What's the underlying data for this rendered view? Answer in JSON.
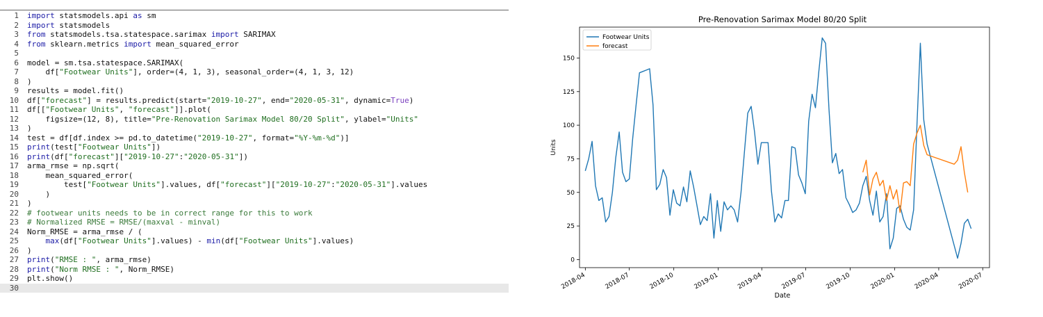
{
  "editor": {
    "current_line": 30,
    "lines": [
      [
        {
          "t": "import",
          "c": "kw"
        },
        {
          "t": " statsmodels.api "
        },
        {
          "t": "as",
          "c": "kw"
        },
        {
          "t": " sm"
        }
      ],
      [
        {
          "t": "import",
          "c": "kw"
        },
        {
          "t": " statsmodels"
        }
      ],
      [
        {
          "t": "from",
          "c": "kw"
        },
        {
          "t": " statsmodels.tsa.statespace.sarimax "
        },
        {
          "t": "import",
          "c": "kw"
        },
        {
          "t": " SARIMAX"
        }
      ],
      [
        {
          "t": "from",
          "c": "kw"
        },
        {
          "t": " sklearn.metrics "
        },
        {
          "t": "import",
          "c": "kw"
        },
        {
          "t": " mean_squared_error"
        }
      ],
      [],
      [
        {
          "t": "model = sm.tsa.statespace.SARIMAX("
        }
      ],
      [
        {
          "t": "    df["
        },
        {
          "t": "\"Footwear Units\"",
          "c": "str"
        },
        {
          "t": "], order=(4, 1, 3), seasonal_order=(4, 1, 3, 12)"
        }
      ],
      [
        {
          "t": ")"
        }
      ],
      [
        {
          "t": "results = model.fit()"
        }
      ],
      [
        {
          "t": "df["
        },
        {
          "t": "\"forecast\"",
          "c": "str"
        },
        {
          "t": "] = results.predict(start="
        },
        {
          "t": "\"2019-10-27\"",
          "c": "str"
        },
        {
          "t": ", end="
        },
        {
          "t": "\"2020-05-31\"",
          "c": "str"
        },
        {
          "t": ", dynamic="
        },
        {
          "t": "True",
          "c": "bool"
        },
        {
          "t": ")"
        }
      ],
      [
        {
          "t": "df[["
        },
        {
          "t": "\"Footwear Units\"",
          "c": "str"
        },
        {
          "t": ", "
        },
        {
          "t": "\"forecast\"",
          "c": "str"
        },
        {
          "t": "]].plot("
        }
      ],
      [
        {
          "t": "    figsize=(12, 8), title="
        },
        {
          "t": "\"Pre-Renovation Sarimax Model 80/20 Split\"",
          "c": "str"
        },
        {
          "t": ", ylabel="
        },
        {
          "t": "\"Units\"",
          "c": "str"
        }
      ],
      [
        {
          "t": ")"
        }
      ],
      [
        {
          "t": "test = df[df.index >= pd.to_datetime("
        },
        {
          "t": "\"2019-10-27\"",
          "c": "str"
        },
        {
          "t": ", format="
        },
        {
          "t": "\"%Y-%m-%d\"",
          "c": "str"
        },
        {
          "t": ")]"
        }
      ],
      [
        {
          "t": "print",
          "c": "kw"
        },
        {
          "t": "(test["
        },
        {
          "t": "\"Footwear Units\"",
          "c": "str"
        },
        {
          "t": "])"
        }
      ],
      [
        {
          "t": "print",
          "c": "kw"
        },
        {
          "t": "(df["
        },
        {
          "t": "\"forecast\"",
          "c": "str"
        },
        {
          "t": "]["
        },
        {
          "t": "\"2019-10-27\"",
          "c": "str"
        },
        {
          "t": ":"
        },
        {
          "t": "\"2020-05-31\"",
          "c": "str"
        },
        {
          "t": "])"
        }
      ],
      [
        {
          "t": "arma_rmse = np.sqrt("
        }
      ],
      [
        {
          "t": "    mean_squared_error("
        }
      ],
      [
        {
          "t": "        test["
        },
        {
          "t": "\"Footwear Units\"",
          "c": "str"
        },
        {
          "t": "].values, df["
        },
        {
          "t": "\"forecast\"",
          "c": "str"
        },
        {
          "t": "]["
        },
        {
          "t": "\"2019-10-27\"",
          "c": "str"
        },
        {
          "t": ":"
        },
        {
          "t": "\"2020-05-31\"",
          "c": "str"
        },
        {
          "t": "].values"
        }
      ],
      [
        {
          "t": "    )"
        }
      ],
      [
        {
          "t": ")"
        }
      ],
      [
        {
          "t": "# footwear units needs to be in correct range for this to work",
          "c": "cmt"
        }
      ],
      [
        {
          "t": "# Normalized RMSE = RMSE/(maxval - minval)",
          "c": "cmt"
        }
      ],
      [
        {
          "t": "Norm_RMSE = arma_rmse / ("
        }
      ],
      [
        {
          "t": "    "
        },
        {
          "t": "max",
          "c": "kw"
        },
        {
          "t": "(df["
        },
        {
          "t": "\"Footwear Units\"",
          "c": "str"
        },
        {
          "t": "].values) - "
        },
        {
          "t": "min",
          "c": "kw"
        },
        {
          "t": "(df["
        },
        {
          "t": "\"Footwear Units\"",
          "c": "str"
        },
        {
          "t": "].values)"
        }
      ],
      [
        {
          "t": ")"
        }
      ],
      [
        {
          "t": "print",
          "c": "kw"
        },
        {
          "t": "("
        },
        {
          "t": "\"RMSE : \"",
          "c": "str"
        },
        {
          "t": ", arma_rmse)"
        }
      ],
      [
        {
          "t": "print",
          "c": "kw"
        },
        {
          "t": "("
        },
        {
          "t": "\"Norm RMSE : \"",
          "c": "str"
        },
        {
          "t": ", Norm_RMSE)"
        }
      ],
      [
        {
          "t": "plt.show()"
        }
      ],
      []
    ]
  },
  "chart_data": {
    "type": "line",
    "title": "Pre-Renovation Sarimax Model 80/20 Split",
    "xlabel": "Date",
    "ylabel": "Units",
    "x_ticks": [
      "2018-04",
      "2018-07",
      "2018-10",
      "2019-01",
      "2019-04",
      "2019-07",
      "2019-10",
      "2020-01",
      "2020-04",
      "2020-07"
    ],
    "y_ticks": [
      0,
      25,
      50,
      75,
      100,
      125,
      150
    ],
    "xlim": [
      "2018-03-20",
      "2020-07-15"
    ],
    "ylim": [
      -6,
      173
    ],
    "legend_position": "top-left",
    "grid": false,
    "series": [
      {
        "name": "Footwear Units",
        "color": "#1f77b4",
        "points": [
          [
            "2018-04-01",
            66
          ],
          [
            "2018-04-08",
            75
          ],
          [
            "2018-04-15",
            88
          ],
          [
            "2018-04-22",
            55
          ],
          [
            "2018-04-29",
            44
          ],
          [
            "2018-05-06",
            46
          ],
          [
            "2018-05-13",
            28
          ],
          [
            "2018-05-20",
            32
          ],
          [
            "2018-05-27",
            50
          ],
          [
            "2018-06-03",
            76
          ],
          [
            "2018-06-10",
            95
          ],
          [
            "2018-06-17",
            65
          ],
          [
            "2018-06-24",
            58
          ],
          [
            "2018-07-01",
            60
          ],
          [
            "2018-07-08",
            90
          ],
          [
            "2018-07-15",
            115
          ],
          [
            "2018-07-22",
            139
          ],
          [
            "2018-07-29",
            140
          ],
          [
            "2018-08-05",
            141
          ],
          [
            "2018-08-12",
            142
          ],
          [
            "2018-08-19",
            115
          ],
          [
            "2018-08-26",
            52
          ],
          [
            "2018-09-02",
            56
          ],
          [
            "2018-09-09",
            67
          ],
          [
            "2018-09-16",
            61
          ],
          [
            "2018-09-23",
            33
          ],
          [
            "2018-09-30",
            52
          ],
          [
            "2018-10-07",
            42
          ],
          [
            "2018-10-14",
            40
          ],
          [
            "2018-10-21",
            54
          ],
          [
            "2018-10-28",
            43
          ],
          [
            "2018-11-04",
            66
          ],
          [
            "2018-11-11",
            54
          ],
          [
            "2018-11-18",
            40
          ],
          [
            "2018-11-25",
            26
          ],
          [
            "2018-12-02",
            32
          ],
          [
            "2018-12-09",
            29
          ],
          [
            "2018-12-16",
            49
          ],
          [
            "2018-12-23",
            16
          ],
          [
            "2018-12-30",
            44
          ],
          [
            "2019-01-06",
            21
          ],
          [
            "2019-01-13",
            43
          ],
          [
            "2019-01-20",
            37
          ],
          [
            "2019-01-27",
            40
          ],
          [
            "2019-02-03",
            37
          ],
          [
            "2019-02-10",
            28
          ],
          [
            "2019-02-17",
            50
          ],
          [
            "2019-02-24",
            80
          ],
          [
            "2019-03-03",
            109
          ],
          [
            "2019-03-10",
            114
          ],
          [
            "2019-03-17",
            95
          ],
          [
            "2019-03-24",
            71
          ],
          [
            "2019-03-31",
            87
          ],
          [
            "2019-04-07",
            87
          ],
          [
            "2019-04-14",
            87
          ],
          [
            "2019-04-21",
            51
          ],
          [
            "2019-04-28",
            28
          ],
          [
            "2019-05-05",
            34
          ],
          [
            "2019-05-12",
            31
          ],
          [
            "2019-05-19",
            44
          ],
          [
            "2019-05-26",
            44
          ],
          [
            "2019-06-02",
            84
          ],
          [
            "2019-06-09",
            83
          ],
          [
            "2019-06-16",
            63
          ],
          [
            "2019-06-23",
            57
          ],
          [
            "2019-06-30",
            49
          ],
          [
            "2019-07-07",
            103
          ],
          [
            "2019-07-14",
            123
          ],
          [
            "2019-07-21",
            113
          ],
          [
            "2019-07-28",
            140
          ],
          [
            "2019-08-04",
            165
          ],
          [
            "2019-08-11",
            161
          ],
          [
            "2019-08-18",
            112
          ],
          [
            "2019-08-25",
            72
          ],
          [
            "2019-09-01",
            79
          ],
          [
            "2019-09-08",
            64
          ],
          [
            "2019-09-15",
            67
          ],
          [
            "2019-09-22",
            46
          ],
          [
            "2019-09-29",
            41
          ],
          [
            "2019-10-06",
            35
          ],
          [
            "2019-10-13",
            37
          ],
          [
            "2019-10-20",
            42
          ],
          [
            "2019-10-27",
            55
          ],
          [
            "2019-11-03",
            62
          ],
          [
            "2019-11-10",
            44
          ],
          [
            "2019-11-17",
            33
          ],
          [
            "2019-11-24",
            51
          ],
          [
            "2019-12-01",
            28
          ],
          [
            "2019-12-08",
            32
          ],
          [
            "2019-12-15",
            49
          ],
          [
            "2019-12-22",
            8
          ],
          [
            "2019-12-29",
            16
          ],
          [
            "2020-01-05",
            38
          ],
          [
            "2020-01-12",
            40
          ],
          [
            "2020-01-19",
            30
          ],
          [
            "2020-01-26",
            24
          ],
          [
            "2020-02-02",
            22
          ],
          [
            "2020-02-09",
            37
          ],
          [
            "2020-02-16",
            100
          ],
          [
            "2020-02-23",
            161
          ],
          [
            "2020-03-01",
            104
          ],
          [
            "2020-03-08",
            86
          ],
          [
            "2020-05-10",
            1
          ],
          [
            "2020-05-17",
            12
          ],
          [
            "2020-05-24",
            27
          ],
          [
            "2020-05-31",
            30
          ],
          [
            "2020-06-07",
            23
          ]
        ]
      },
      {
        "name": "forecast",
        "color": "#ff7f0e",
        "points": [
          [
            "2019-10-27",
            65
          ],
          [
            "2019-11-03",
            74
          ],
          [
            "2019-11-10",
            48
          ],
          [
            "2019-11-17",
            60
          ],
          [
            "2019-11-24",
            65
          ],
          [
            "2019-12-01",
            55
          ],
          [
            "2019-12-08",
            59
          ],
          [
            "2019-12-15",
            44
          ],
          [
            "2019-12-22",
            55
          ],
          [
            "2019-12-29",
            45
          ],
          [
            "2020-01-05",
            52
          ],
          [
            "2020-01-12",
            35
          ],
          [
            "2020-01-19",
            57
          ],
          [
            "2020-01-26",
            58
          ],
          [
            "2020-02-02",
            55
          ],
          [
            "2020-02-09",
            86
          ],
          [
            "2020-02-16",
            94
          ],
          [
            "2020-02-23",
            100
          ],
          [
            "2020-03-01",
            85
          ],
          [
            "2020-03-08",
            78
          ],
          [
            "2020-05-03",
            71
          ],
          [
            "2020-05-10",
            74
          ],
          [
            "2020-05-17",
            84
          ],
          [
            "2020-05-24",
            65
          ],
          [
            "2020-05-31",
            50
          ]
        ]
      }
    ]
  }
}
